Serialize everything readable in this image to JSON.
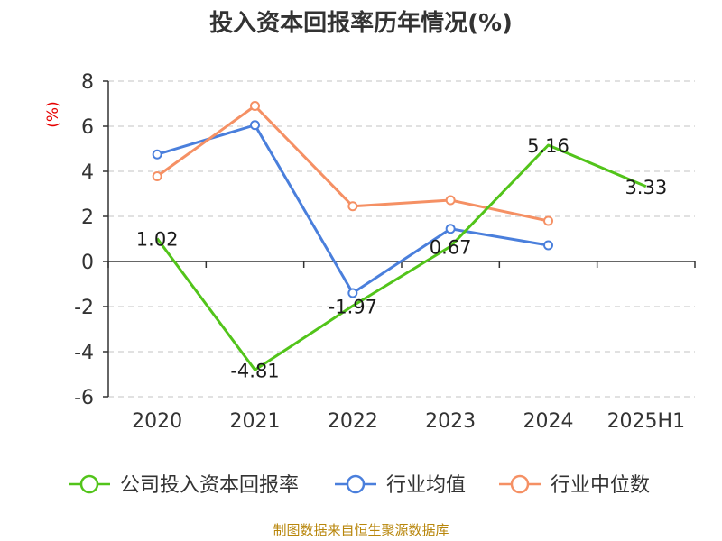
{
  "title": "投入资本回报率历年情况(%)",
  "unit": "(%)",
  "source": "制图数据来自恒生聚源数据库",
  "chart_data": {
    "type": "line",
    "title": "投入资本回报率历年情况(%)",
    "ylabel": "(%)",
    "categories": [
      "2020",
      "2021",
      "2022",
      "2023",
      "2024",
      "2025H1"
    ],
    "ylim": [
      -6,
      8
    ],
    "yticks": [
      -6,
      -4,
      -2,
      0,
      2,
      4,
      6,
      8
    ],
    "grid": true,
    "legend_position": "bottom",
    "series": [
      {
        "name": "公司投入资本回报率",
        "color": "#52c41a",
        "values": [
          1.02,
          -4.81,
          -1.97,
          0.67,
          5.16,
          3.33
        ],
        "labels": [
          "1.02",
          "-4.81",
          "-1.97",
          "0.67",
          "5.16",
          "3.33"
        ]
      },
      {
        "name": "行业均值",
        "color": "#4a7fdc",
        "values": [
          4.75,
          6.05,
          -1.4,
          1.45,
          0.72,
          null
        ]
      },
      {
        "name": "行业中位数",
        "color": "#f59064",
        "values": [
          3.78,
          6.9,
          2.45,
          2.72,
          1.8,
          null
        ]
      }
    ]
  }
}
